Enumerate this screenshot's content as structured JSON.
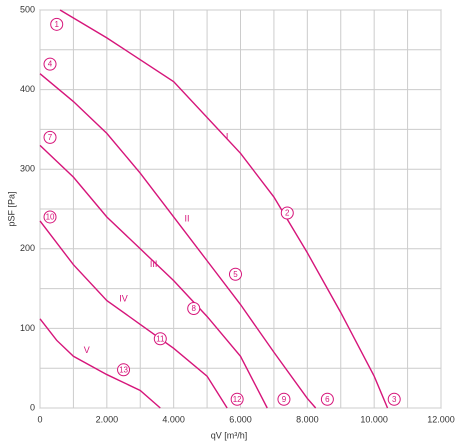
{
  "chart_data": {
    "type": "line",
    "xlabel": "qV [m³/h]",
    "ylabel": "pSF [Pa]",
    "xlim": [
      0,
      12000
    ],
    "ylim": [
      0,
      500
    ],
    "xticks": [
      0,
      {
        "value": 2000,
        "label": "2.000"
      },
      {
        "value": 4000,
        "label": "4.000"
      },
      {
        "value": 6000,
        "label": "6.000"
      },
      {
        "value": 8000,
        "label": "8.000"
      },
      {
        "value": 10000,
        "label": "10.000"
      },
      {
        "value": 12000,
        "label": "12.000"
      }
    ],
    "yticks": [
      0,
      100,
      200,
      300,
      400,
      500
    ],
    "xgrid_minor": [
      1000,
      3000,
      5000,
      7000,
      9000,
      11000
    ],
    "ygrid_minor": [
      50,
      150,
      250,
      350,
      450
    ],
    "grid": true,
    "color": "#d6157a",
    "series": [
      {
        "name": "I",
        "label_x": 5600,
        "label_y": 340,
        "x": [
          600,
          2000,
          4000,
          6000,
          7000,
          8000,
          9000,
          10000,
          10400
        ],
        "values": [
          500,
          465,
          410,
          320,
          265,
          195,
          120,
          40,
          0
        ]
      },
      {
        "name": "II",
        "label_x": 4400,
        "label_y": 237,
        "x": [
          0,
          1000,
          2000,
          3000,
          4000,
          5000,
          6000,
          7000,
          8000,
          8250
        ],
        "values": [
          420,
          385,
          345,
          295,
          240,
          185,
          130,
          70,
          12,
          0
        ]
      },
      {
        "name": "III",
        "label_x": 3400,
        "label_y": 180,
        "x": [
          0,
          1000,
          2000,
          3000,
          4000,
          5000,
          6000,
          6800
        ],
        "values": [
          330,
          290,
          240,
          200,
          160,
          115,
          65,
          0
        ]
      },
      {
        "name": "IV",
        "label_x": 2500,
        "label_y": 137,
        "x": [
          0,
          1000,
          2000,
          3000,
          4000,
          5000,
          5600
        ],
        "values": [
          235,
          180,
          135,
          105,
          75,
          40,
          0
        ]
      },
      {
        "name": "V",
        "label_x": 1400,
        "label_y": 72,
        "x": [
          0,
          500,
          1000,
          2000,
          3000,
          3600
        ],
        "values": [
          112,
          85,
          65,
          42,
          22,
          0
        ]
      }
    ],
    "annotations": [
      {
        "text": "1",
        "x": 500,
        "y": 482
      },
      {
        "text": "4",
        "x": 300,
        "y": 432
      },
      {
        "text": "7",
        "x": 300,
        "y": 340
      },
      {
        "text": "10",
        "x": 300,
        "y": 240
      },
      {
        "text": "13",
        "x": 2500,
        "y": 48
      },
      {
        "text": "11",
        "x": 3600,
        "y": 87
      },
      {
        "text": "8",
        "x": 4600,
        "y": 125
      },
      {
        "text": "5",
        "x": 5850,
        "y": 168
      },
      {
        "text": "2",
        "x": 7400,
        "y": 245
      },
      {
        "text": "12",
        "x": 5900,
        "y": 11
      },
      {
        "text": "9",
        "x": 7300,
        "y": 11
      },
      {
        "text": "6",
        "x": 8600,
        "y": 11
      },
      {
        "text": "3",
        "x": 10600,
        "y": 11
      }
    ]
  }
}
